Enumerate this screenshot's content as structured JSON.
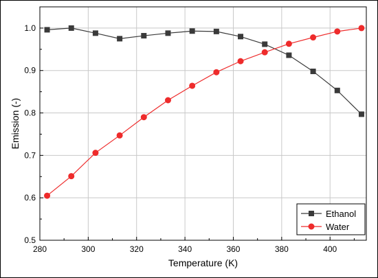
{
  "chart_data": {
    "type": "line",
    "title": "",
    "xlabel": "Temperature (K)",
    "ylabel": "Emission (-)",
    "xlim": [
      280,
      415
    ],
    "ylim": [
      0.5,
      1.05
    ],
    "x_ticks": [
      "280",
      "300",
      "320",
      "340",
      "360",
      "380",
      "400"
    ],
    "y_ticks": [
      "0.5",
      "0.6",
      "0.7",
      "0.8",
      "0.9",
      "1.0"
    ],
    "grid": true,
    "legend_position": "bottom-right",
    "x": [
      283,
      293,
      303,
      313,
      323,
      333,
      343,
      353,
      363,
      373,
      383,
      393,
      403,
      413
    ],
    "series": [
      {
        "name": "Ethanol",
        "marker": "square",
        "color": "#3a3a3a",
        "values": [
          0.996,
          1.0,
          0.988,
          0.975,
          0.982,
          0.988,
          0.993,
          0.992,
          0.98,
          0.962,
          0.936,
          0.898,
          0.853,
          0.797
        ]
      },
      {
        "name": "Water",
        "marker": "circle",
        "color": "#ee2b2b",
        "values": [
          0.605,
          0.651,
          0.706,
          0.747,
          0.79,
          0.83,
          0.864,
          0.896,
          0.922,
          0.943,
          0.963,
          0.978,
          0.992,
          1.0
        ]
      }
    ]
  }
}
